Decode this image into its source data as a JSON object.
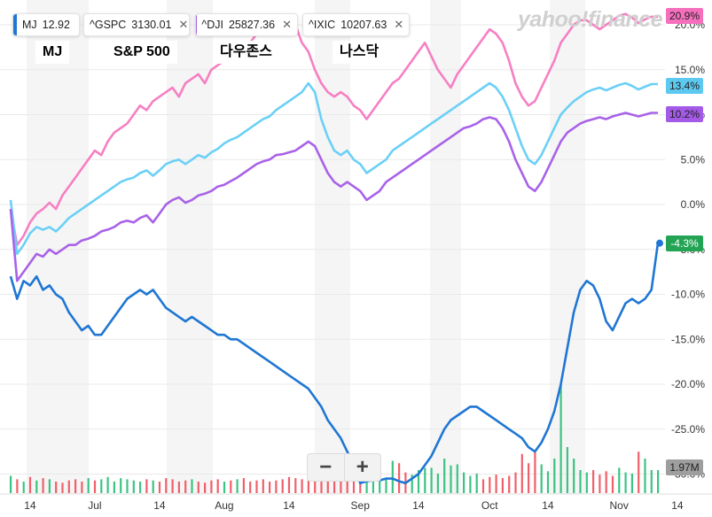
{
  "legend": [
    {
      "symbol": "MJ",
      "value": "12.92",
      "color": "#1f76d4",
      "closable": false
    },
    {
      "symbol": "^GSPC",
      "value": "3130.01",
      "color": "#6bd0f6",
      "closable": true
    },
    {
      "symbol": "^DJI",
      "value": "25827.36",
      "color": "#a962e8",
      "closable": true
    },
    {
      "symbol": "^IXIC",
      "value": "10207.63",
      "color": "#f77fc3",
      "closable": true
    }
  ],
  "close_glyph": "✕",
  "captions": [
    "MJ",
    "S&P 500",
    "다우존스",
    "나스닥"
  ],
  "logo": "yahoo!finance",
  "zoom": {
    "minus": "−",
    "plus": "+"
  },
  "chart_data": {
    "type": "line",
    "y_unit": "%",
    "ylim": [
      -31,
      21
    ],
    "y_ticks": [
      {
        "v": 20,
        "label": "20.0%"
      },
      {
        "v": 15,
        "label": "15.0%"
      },
      {
        "v": 10,
        "label": "10.0%"
      },
      {
        "v": 5,
        "label": "5.0%"
      },
      {
        "v": 0,
        "label": "0.0%"
      },
      {
        "v": -5,
        "label": "-5.0%"
      },
      {
        "v": -10,
        "label": "-10.0%"
      },
      {
        "v": -15,
        "label": "-15.0%"
      },
      {
        "v": -20,
        "label": "-20.0%"
      },
      {
        "v": -25,
        "label": "-25.0%"
      },
      {
        "v": -30,
        "label": "-30.0%"
      }
    ],
    "x_index_range": [
      0,
      100
    ],
    "x_ticks": [
      {
        "i": 3,
        "label": "14"
      },
      {
        "i": 13,
        "label": "Jul"
      },
      {
        "i": 23,
        "label": "14"
      },
      {
        "i": 33,
        "label": "Aug"
      },
      {
        "i": 43,
        "label": "14"
      },
      {
        "i": 54,
        "label": "Sep"
      },
      {
        "i": 63,
        "label": "14"
      },
      {
        "i": 74,
        "label": "Oct"
      },
      {
        "i": 83,
        "label": "14"
      },
      {
        "i": 94,
        "label": "Nov"
      },
      {
        "i": 103,
        "label": "14"
      }
    ],
    "grid": true,
    "series": [
      {
        "name": "^IXIC",
        "color": "#f77fc3",
        "end_label": "20.9%",
        "end_value": 20.9,
        "values": [
          -0.5,
          -4.5,
          -3.5,
          -2,
          -1,
          -0.5,
          0.2,
          -0.5,
          1,
          2,
          3,
          4,
          5,
          6,
          5.5,
          7,
          8,
          8.5,
          9,
          10,
          11,
          10.5,
          11.5,
          12,
          12.5,
          13,
          12,
          13.5,
          14,
          14.5,
          13.5,
          15,
          15.5,
          16,
          16.5,
          17,
          17.5,
          18,
          19,
          19.5,
          19,
          20,
          20.5,
          21,
          20,
          18,
          17,
          15,
          13.5,
          12.5,
          12,
          12.5,
          12,
          11,
          10.5,
          9.5,
          10.5,
          11.5,
          12.5,
          13.5,
          14,
          15,
          16,
          17,
          18,
          16.5,
          15,
          14,
          13,
          14.5,
          15.5,
          16.5,
          17.5,
          18.5,
          19.5,
          19,
          18,
          16,
          13.5,
          12,
          11,
          11.5,
          13,
          14.5,
          16,
          18,
          19,
          20,
          20.5,
          20.5,
          20,
          19.5,
          20,
          20.5,
          21,
          21.2,
          20.8,
          20.2,
          20.6,
          20.9,
          20.9
        ]
      },
      {
        "name": "^GSPC",
        "color": "#6bd0f6",
        "end_label": "13.4%",
        "end_value": 13.4,
        "values": [
          0.5,
          -5.5,
          -4.5,
          -3.2,
          -2.5,
          -2.8,
          -2.5,
          -3,
          -2.3,
          -1.5,
          -1,
          -0.5,
          0,
          0.5,
          1,
          1.5,
          2,
          2.5,
          2.8,
          3,
          3.5,
          3.8,
          3.2,
          3.8,
          4.5,
          4.8,
          5,
          4.5,
          5,
          5.5,
          5.2,
          5.8,
          6.2,
          6.8,
          7.2,
          7.5,
          8,
          8.5,
          9,
          9.5,
          9.8,
          10.5,
          11,
          11.5,
          12,
          12.5,
          13.5,
          12.5,
          9.5,
          7.5,
          6,
          5.5,
          6,
          5,
          4.5,
          3.5,
          4,
          4.5,
          5,
          6,
          6.5,
          7,
          7.5,
          8,
          8.5,
          9,
          9.5,
          10,
          10.5,
          11,
          11.5,
          12,
          12.5,
          13,
          13.5,
          13,
          12,
          10.5,
          8.5,
          6.5,
          5,
          4.5,
          5.5,
          7,
          8.5,
          10,
          10.8,
          11.5,
          12,
          12.5,
          12.8,
          13,
          12.7,
          13,
          13.3,
          13.5,
          13.2,
          12.8,
          13.1,
          13.4,
          13.4
        ]
      },
      {
        "name": "^DJI",
        "color": "#a962e8",
        "end_label": "10.2%",
        "end_value": 10.2,
        "values": [
          -0.5,
          -8.5,
          -7.5,
          -6.5,
          -5.5,
          -5.8,
          -5,
          -5.5,
          -5,
          -4.5,
          -4.5,
          -4,
          -3.8,
          -3.5,
          -3,
          -2.8,
          -2.5,
          -2,
          -1.8,
          -2,
          -1.5,
          -1.2,
          -2,
          -1,
          0,
          0.5,
          0.8,
          0.2,
          0.5,
          1,
          1.2,
          1.5,
          2,
          2.2,
          2.6,
          3,
          3.5,
          4,
          4.5,
          4.8,
          5,
          5.5,
          5.6,
          5.8,
          6,
          6.5,
          7,
          6.5,
          5,
          3.5,
          2.5,
          2,
          2.5,
          2,
          1.5,
          0.5,
          1,
          1.5,
          2.5,
          3,
          3.5,
          4,
          4.5,
          5,
          5.5,
          6,
          6.5,
          7,
          7.5,
          8,
          8.5,
          8.7,
          9,
          9.5,
          9.7,
          9.5,
          8.5,
          7,
          5,
          3.5,
          2,
          1.5,
          2.5,
          4,
          5.5,
          7,
          8,
          8.5,
          9,
          9.3,
          9.5,
          9.7,
          9.5,
          9.8,
          10,
          10.2,
          10,
          9.8,
          10,
          10.2,
          10.2
        ]
      },
      {
        "name": "MJ",
        "color": "#1f76d4",
        "end_label": "-4.3%",
        "end_value": -4.3,
        "values": [
          -8,
          -10.5,
          -8.5,
          -9,
          -8,
          -9.5,
          -9,
          -10,
          -10.5,
          -12,
          -13,
          -14,
          -13.5,
          -14.5,
          -14.5,
          -13.5,
          -12.5,
          -11.5,
          -10.5,
          -10,
          -9.5,
          -10,
          -9.5,
          -10.5,
          -11.5,
          -12,
          -12.5,
          -13,
          -12.5,
          -13,
          -13.5,
          -14,
          -14.5,
          -14.5,
          -15,
          -15,
          -15.5,
          -16,
          -16.5,
          -17,
          -17.5,
          -18,
          -18.5,
          -19,
          -19.5,
          -20,
          -20.5,
          -21.5,
          -22.5,
          -24,
          -25,
          -26,
          -27.5,
          -29,
          -31,
          -30.8,
          -30.7,
          -30.7,
          -30.5,
          -30.5,
          -30.8,
          -31,
          -30.5,
          -30,
          -29,
          -28,
          -26.5,
          -25,
          -24,
          -23.5,
          -23,
          -22.5,
          -22.5,
          -23,
          -23.5,
          -24,
          -24.5,
          -25,
          -25.5,
          -26,
          -27,
          -27.5,
          -26.5,
          -25,
          -23,
          -20,
          -16,
          -12,
          -9.5,
          -8.5,
          -9,
          -10.5,
          -13,
          -14,
          -12.5,
          -11,
          -10.5,
          -11,
          -10.5,
          -9.5,
          -4.3
        ]
      }
    ],
    "volume": {
      "label": "1.97M",
      "max": "1.97M",
      "bars": [
        0.15,
        0.12,
        0.1,
        0.14,
        0.11,
        0.13,
        0.12,
        0.1,
        0.09,
        0.11,
        0.12,
        0.1,
        0.13,
        0.11,
        0.12,
        0.14,
        0.1,
        0.13,
        0.12,
        0.11,
        0.1,
        0.12,
        0.11,
        0.1,
        0.13,
        0.12,
        0.1,
        0.11,
        0.12,
        0.1,
        0.09,
        0.11,
        0.12,
        0.1,
        0.11,
        0.12,
        0.13,
        0.1,
        0.11,
        0.12,
        0.1,
        0.11,
        0.12,
        0.14,
        0.13,
        0.12,
        0.11,
        0.13,
        0.12,
        0.14,
        0.11,
        0.12,
        0.13,
        0.1,
        0.09,
        0.12,
        0.1,
        0.15,
        0.12,
        0.28,
        0.26,
        0.18,
        0.16,
        0.2,
        0.22,
        0.22,
        0.17,
        0.3,
        0.24,
        0.25,
        0.18,
        0.15,
        0.17,
        0.12,
        0.14,
        0.16,
        0.13,
        0.15,
        0.18,
        0.34,
        0.26,
        0.36,
        0.25,
        0.19,
        0.3,
        0.95,
        0.4,
        0.3,
        0.2,
        0.18,
        0.2,
        0.16,
        0.19,
        0.15,
        0.22,
        0.18,
        0.17,
        0.36,
        0.3,
        0.2,
        0.2
      ],
      "up_color": "#3cc383",
      "down_color": "#f0606a"
    }
  }
}
